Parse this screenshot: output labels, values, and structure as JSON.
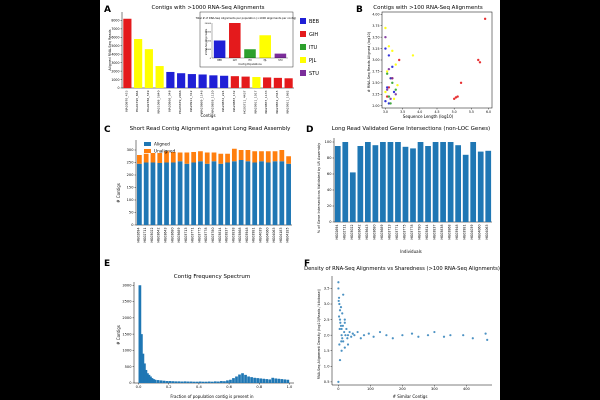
{
  "colors": {
    "background": "#000000",
    "figure": "#ffffff",
    "blue": "#1f77b4",
    "orange": "#ff7f0e",
    "BEB": "#1f1fd6",
    "GIH": "#e41a1c",
    "ITU": "#2ca02c",
    "PJL": "#ffff00",
    "STU": "#7b2d9a"
  },
  "panels": {
    "a": {
      "letter": "A",
      "title": "Contigs with >1000 RNA-Seq Alignments",
      "xlabel": "Contigs",
      "ylabel": "Aligned RNA-Seq Reads",
      "inset": {
        "title": "Total # of RNA-Seq Alignments per population (>1000 alignments per contig)",
        "xlabel": "Contig Populations",
        "ylabel": "# RNA-Seq Alignments"
      }
    },
    "b": {
      "letter": "B",
      "title": "Contigs with >100 RNA-Seq Alignments",
      "xlabel": "Sequence Length (log10)",
      "ylabel": "# RNA-Seq Reads Aligned (log10)"
    },
    "c": {
      "letter": "C",
      "title": "Short Read Contig Alignment against Long Read Assembly",
      "ylabel": "# Contigs"
    },
    "d": {
      "letter": "D",
      "title": "Long Read Validated Gene Intersections (non-LOC Genes)",
      "xlabel": "Individuals",
      "ylabel": "% of Gene Intersections Validated by LR Assembly"
    },
    "e": {
      "letter": "E",
      "title": "Contig Frequency Spectrum",
      "xlabel": "Fraction of population contig is present in",
      "ylabel": "# Contigs"
    },
    "f": {
      "letter": "F",
      "title": "Density of RNA-Seq Alignments vs Sharedness (>100 RNA-Seq Alignments)",
      "xlabel": "# Similar Contigs",
      "ylabel": "RNA-Seq Alignment Density (log10(Reads / kilobase))"
    }
  },
  "chart_data": [
    {
      "id": "a",
      "type": "bar",
      "title": "Contigs with >1000 RNA-Seq Alignments",
      "xlabel": "Contigs",
      "ylabel": "Aligned RNA-Seq Reads",
      "ylim": [
        0,
        9000
      ],
      "yticks": [
        0,
        1000,
        2000,
        3000,
        4000,
        5000,
        6000,
        7000,
        8000
      ],
      "categories": [
        "NA20870_453",
        "HG01595_864",
        "HG02786_549",
        "NA21098_5640",
        "NA20866_348",
        "HG03679_2066",
        "NA20911_312",
        "NA20869_1146",
        "NA20858_1120",
        "NA20852_224",
        "NA20887_132",
        "HG03711_4437",
        "NA20911_1017",
        "NA20855_1133",
        "NA20852_2345",
        "NA20911_1962"
      ],
      "values": [
        8200,
        5800,
        4600,
        2600,
        1900,
        1750,
        1650,
        1600,
        1500,
        1450,
        1400,
        1350,
        1300,
        1250,
        1200,
        1150
      ],
      "bar_populations": [
        "GIH",
        "PJL",
        "PJL",
        "PJL",
        "BEB",
        "BEB",
        "BEB",
        "BEB",
        "BEB",
        "BEB",
        "GIH",
        "GIH",
        "PJL",
        "GIH",
        "GIH",
        "GIH"
      ],
      "inset": {
        "type": "bar",
        "title": "Total # of RNA-Seq Alignments per population (>1000 alignments per contig)",
        "xlabel": "Contig Populations",
        "ylabel": "# RNA-Seq Alignments",
        "categories": [
          "BEB",
          "GIH",
          "ITU",
          "PJL",
          "STU"
        ],
        "values": [
          10000,
          20000,
          5000,
          13000,
          2500
        ],
        "ylim": [
          0,
          20000
        ],
        "yticks": [
          0,
          5000,
          10000,
          15000,
          20000
        ]
      },
      "legend": [
        "BEB",
        "GIH",
        "ITU",
        "PJL",
        "STU"
      ]
    },
    {
      "id": "b",
      "type": "scatter",
      "title": "Contigs with >100 RNA-Seq Alignments",
      "xlabel": "Sequence Length (log10)",
      "ylabel": "# RNA-Seq Reads Aligned (log10)",
      "xlim": [
        2.9,
        6.1
      ],
      "ylim": [
        1.95,
        4.05
      ],
      "xticks": [
        3.0,
        3.5,
        4.0,
        4.5,
        5.0,
        5.5,
        6.0
      ],
      "yticks": [
        2.0,
        2.25,
        2.5,
        2.75,
        3.0,
        3.25,
        3.5,
        3.75,
        4.0
      ],
      "series": [
        {
          "name": "GIH",
          "x": [
            5.9,
            5.75,
            5.7,
            5.0,
            5.1,
            5.2,
            5.05,
            3.4,
            3.2,
            3.1,
            3.05
          ],
          "y": [
            3.9,
            2.95,
            3.0,
            2.15,
            2.2,
            2.5,
            2.18,
            3.0,
            2.6,
            2.4,
            2.2
          ]
        },
        {
          "name": "PJL",
          "x": [
            3.0,
            3.1,
            3.2,
            3.3,
            3.05,
            3.15,
            3.8,
            3.0,
            3.25,
            3.35
          ],
          "y": [
            3.7,
            3.3,
            3.2,
            2.9,
            2.75,
            2.6,
            3.1,
            2.3,
            2.15,
            2.45
          ]
        },
        {
          "name": "BEB",
          "x": [
            3.0,
            3.1,
            3.2,
            3.15,
            3.05,
            3.25,
            3.0,
            3.1
          ],
          "y": [
            3.25,
            3.1,
            2.85,
            2.6,
            2.4,
            2.3,
            2.1,
            2.05
          ]
        },
        {
          "name": "ITU",
          "x": [
            3.05,
            3.2,
            3.1,
            3.3,
            3.15
          ],
          "y": [
            2.7,
            2.5,
            2.2,
            2.35,
            2.05
          ]
        },
        {
          "name": "STU",
          "x": [
            3.0,
            3.1,
            3.2,
            3.05,
            3.15,
            3.3
          ],
          "y": [
            3.5,
            2.8,
            2.6,
            2.35,
            2.15,
            2.25
          ]
        }
      ]
    },
    {
      "id": "c",
      "type": "bar",
      "title": "Short Read Contig Alignment against Long Read Assembly",
      "ylabel": "# Contigs",
      "ylim": [
        0,
        340
      ],
      "yticks": [
        0,
        50,
        100,
        150,
        200,
        250,
        300
      ],
      "categories": [
        "HG02694",
        "HG02711",
        "HG03022",
        "HG03642",
        "HG03643",
        "HG03680",
        "HG03689",
        "HG03713",
        "HG03771",
        "HG03775",
        "HG03778",
        "HG03780",
        "HG03814",
        "HG03837",
        "HG03838",
        "HG03868",
        "HG03948",
        "HG03981",
        "HG04039",
        "HG04060",
        "HG04063",
        "HG04183",
        "HG04185"
      ],
      "series": [
        {
          "name": "Aligned",
          "values": [
            245,
            250,
            250,
            248,
            250,
            250,
            255,
            245,
            250,
            255,
            245,
            255,
            245,
            250,
            255,
            260,
            255,
            250,
            255,
            250,
            255,
            255,
            245
          ]
        },
        {
          "name": "Unaligned",
          "values": [
            35,
            35,
            38,
            40,
            45,
            42,
            35,
            45,
            42,
            40,
            45,
            35,
            40,
            35,
            50,
            40,
            45,
            45,
            40,
            45,
            40,
            45,
            30
          ]
        }
      ],
      "legend": [
        "Aligned",
        "Unaligned"
      ]
    },
    {
      "id": "d",
      "type": "bar",
      "title": "Long Read Validated Gene Intersections (non-LOC Genes)",
      "xlabel": "Individuals",
      "ylabel": "% of Gene Intersections Validated by LR Assembly",
      "ylim": [
        0,
        105
      ],
      "yticks": [
        0,
        20,
        40,
        60,
        80,
        100
      ],
      "categories": [
        "HG02694",
        "HG02711",
        "HG03022",
        "HG03642",
        "HG03643",
        "HG03680",
        "HG03689",
        "HG03713",
        "HG03771",
        "HG03775",
        "HG03778",
        "HG03780",
        "HG03814",
        "HG03837",
        "HG03838",
        "HG03868",
        "HG03948",
        "HG03981",
        "HG04039",
        "HG04060",
        "HG04063"
      ],
      "values": [
        95,
        100,
        62,
        95,
        100,
        96,
        100,
        100,
        100,
        94,
        92,
        100,
        95,
        100,
        100,
        100,
        96,
        84,
        100,
        88,
        89
      ]
    },
    {
      "id": "e",
      "type": "bar",
      "title": "Contig Frequency Spectrum",
      "xlabel": "Fraction of population contig is present in",
      "ylabel": "# Contigs",
      "ylim": [
        0,
        3100
      ],
      "xlim": [
        0,
        1.0
      ],
      "xticks": [
        0.0,
        0.2,
        0.4,
        0.6,
        0.8,
        1.0
      ],
      "yticks": [
        0,
        500,
        1000,
        1500,
        2000,
        2500,
        3000
      ],
      "x": [
        0.0,
        0.01,
        0.02,
        0.03,
        0.04,
        0.05,
        0.06,
        0.07,
        0.08,
        0.09,
        0.1,
        0.12,
        0.14,
        0.16,
        0.18,
        0.2,
        0.22,
        0.24,
        0.26,
        0.28,
        0.3,
        0.32,
        0.34,
        0.36,
        0.38,
        0.4,
        0.42,
        0.44,
        0.46,
        0.48,
        0.5,
        0.52,
        0.54,
        0.56,
        0.58,
        0.6,
        0.62,
        0.64,
        0.66,
        0.68,
        0.7,
        0.72,
        0.74,
        0.76,
        0.78,
        0.8,
        0.82,
        0.84,
        0.86,
        0.88,
        0.9,
        0.92,
        0.94,
        0.96,
        0.98
      ],
      "values": [
        3000,
        1500,
        900,
        600,
        400,
        300,
        250,
        200,
        150,
        120,
        100,
        90,
        80,
        70,
        60,
        60,
        55,
        50,
        50,
        45,
        50,
        45,
        45,
        40,
        40,
        45,
        40,
        40,
        45,
        40,
        50,
        45,
        60,
        55,
        80,
        100,
        150,
        200,
        260,
        300,
        250,
        200,
        180,
        160,
        150,
        140,
        130,
        120,
        110,
        160,
        140,
        130,
        120,
        110,
        100
      ]
    },
    {
      "id": "f",
      "type": "scatter",
      "title": "Density of RNA-Seq Alignments vs Sharedness (>100 RNA-Seq Alignments)",
      "xlabel": "# Similar Contigs",
      "ylabel": "RNA-Seq Alignment Density (log10(Reads / kilobase))",
      "xlim": [
        -20,
        480
      ],
      "ylim": [
        0.4,
        3.9
      ],
      "xticks": [
        0,
        100,
        200,
        300,
        400
      ],
      "yticks": [
        0.5,
        1.0,
        1.5,
        2.0,
        2.5,
        3.0,
        3.5
      ],
      "x": [
        0,
        0,
        2,
        3,
        5,
        5,
        8,
        10,
        10,
        12,
        15,
        18,
        20,
        20,
        22,
        25,
        28,
        30,
        35,
        40,
        45,
        50,
        60,
        70,
        80,
        95,
        110,
        130,
        150,
        170,
        200,
        230,
        250,
        280,
        300,
        330,
        350,
        390,
        420,
        460,
        465,
        0,
        5,
        10,
        2,
        8,
        15,
        3,
        6,
        12,
        1,
        4,
        9,
        14,
        20,
        30
      ],
      "y": [
        3.7,
        3.5,
        3.2,
        3.0,
        2.8,
        2.5,
        2.3,
        2.2,
        2.0,
        1.9,
        1.8,
        2.1,
        2.4,
        1.6,
        2.0,
        2.2,
        1.9,
        2.0,
        2.1,
        1.95,
        2.05,
        2.0,
        2.1,
        1.9,
        2.0,
        2.05,
        1.95,
        2.1,
        2.0,
        1.9,
        2.0,
        2.05,
        1.95,
        2.0,
        2.1,
        1.95,
        2.0,
        2.0,
        1.9,
        2.05,
        1.85,
        0.5,
        1.2,
        1.5,
        2.6,
        2.9,
        3.3,
        1.7,
        2.4,
        2.7,
        3.1,
        2.2,
        1.8,
        2.3,
        2.5,
        1.7
      ]
    }
  ]
}
